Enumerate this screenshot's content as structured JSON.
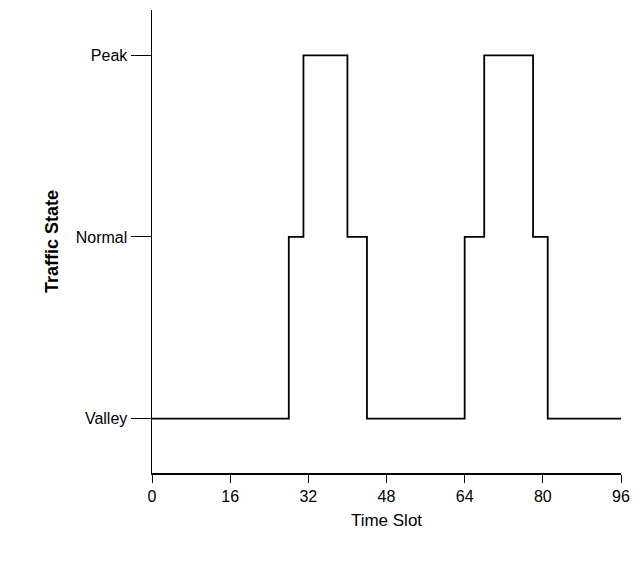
{
  "chart_data": {
    "type": "line",
    "x_label": "Time Slot",
    "y_label": "Traffic State",
    "x": [
      0,
      28,
      31,
      40,
      44,
      64,
      68,
      78,
      81,
      96
    ],
    "values": [
      0,
      1,
      2,
      1,
      0,
      1,
      2,
      1,
      0,
      0
    ],
    "color": "#000000",
    "line_style": "step",
    "xlim": [
      0,
      96
    ],
    "xticks": [
      0,
      16,
      32,
      48,
      64,
      80,
      96
    ],
    "ylim": [
      -0.3,
      2.25
    ],
    "yticks": [
      {
        "value": 0,
        "label": "Valley"
      },
      {
        "value": 1,
        "label": "Normal"
      },
      {
        "value": 2,
        "label": "Peak"
      }
    ],
    "grid": false
  }
}
